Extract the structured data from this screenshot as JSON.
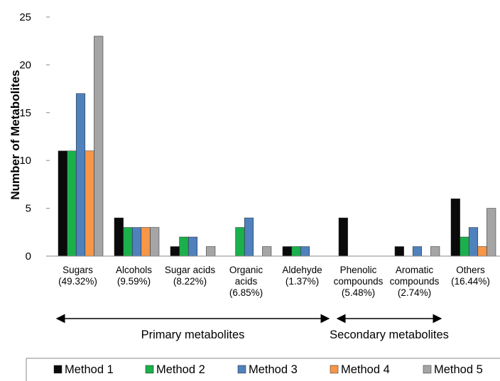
{
  "chart_data": {
    "type": "bar",
    "ylabel": "Number of Metabolites",
    "xlabel": "",
    "ylim": [
      0,
      25
    ],
    "yticks": [
      "0",
      "5",
      "10",
      "15",
      "20",
      "25"
    ],
    "categories": [
      [
        "Sugars",
        "(49.32%)"
      ],
      [
        "Alcohols",
        "(9.59%)"
      ],
      [
        "Sugar acids",
        "(8.22%)"
      ],
      [
        "Organic",
        "acids",
        "(6.85%)"
      ],
      [
        "Aldehyde",
        "(1.37%)"
      ],
      [
        "Phenolic",
        "compounds",
        "(5.48%)"
      ],
      [
        "Aromatic",
        "compounds",
        "(2.74%)"
      ],
      [
        "Others",
        "(16.44%)"
      ]
    ],
    "series": [
      {
        "name": "Method 1",
        "color": "#0a0a0a",
        "values": [
          11,
          4,
          1,
          0,
          1,
          4,
          1,
          6
        ]
      },
      {
        "name": "Method 2",
        "color": "#1bb04b",
        "values": [
          11,
          3,
          2,
          3,
          1,
          0,
          0,
          2
        ]
      },
      {
        "name": "Method 3",
        "color": "#4f81bd",
        "values": [
          17,
          3,
          2,
          4,
          1,
          0,
          1,
          3
        ]
      },
      {
        "name": "Method 4",
        "color": "#f79646",
        "values": [
          11,
          3,
          0,
          0,
          0,
          0,
          0,
          1
        ]
      },
      {
        "name": "Method 5",
        "color": "#a5a5a5",
        "values": [
          23,
          3,
          1,
          1,
          0,
          0,
          1,
          5
        ]
      }
    ],
    "groups": [
      {
        "label": "Primary metabolites",
        "from_category": 0,
        "to_category": 4
      },
      {
        "label": "Secondary metabolites",
        "from_category": 5,
        "to_category": 6
      }
    ],
    "grid": false,
    "legend_position": "bottom"
  }
}
